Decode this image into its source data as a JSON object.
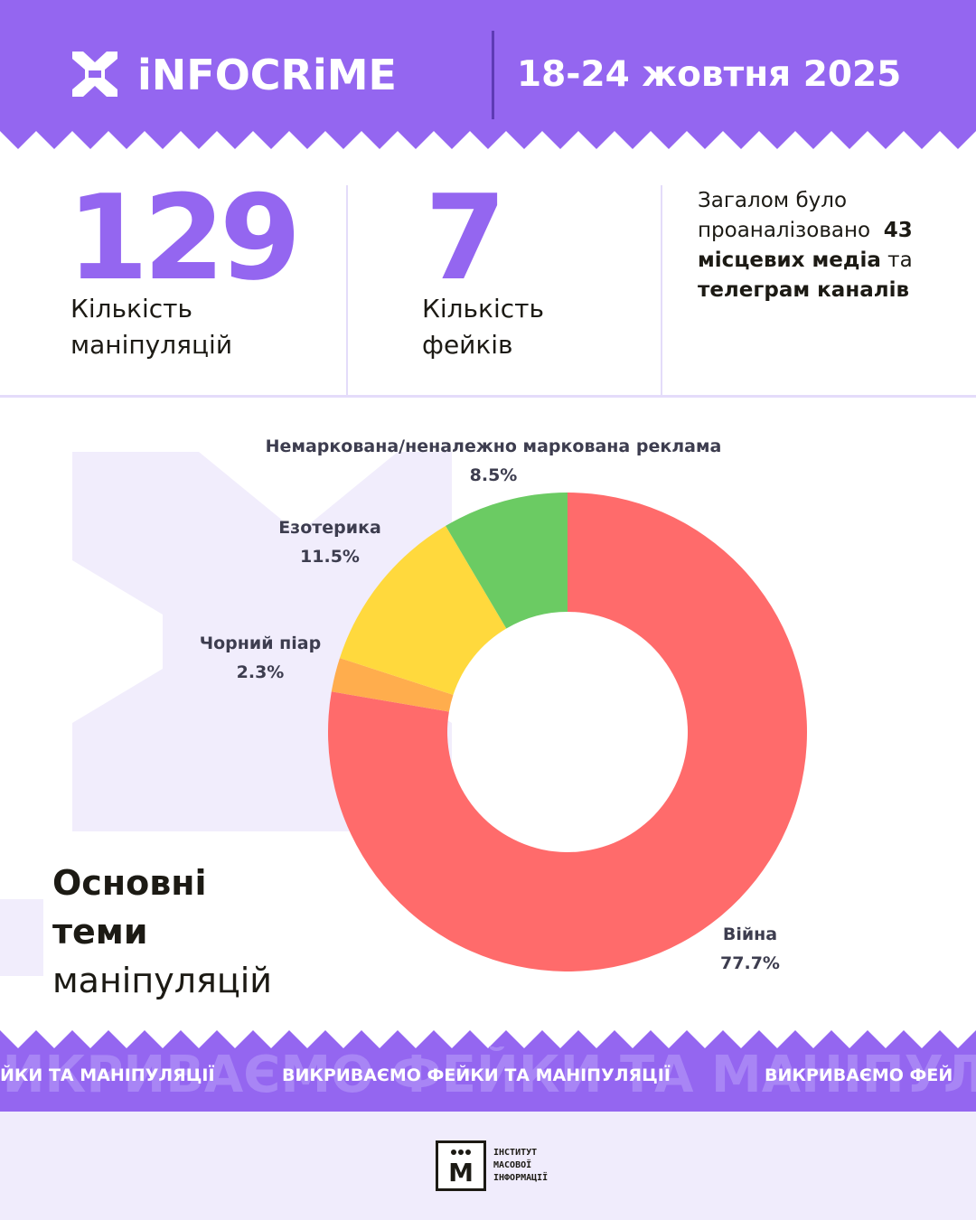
{
  "header": {
    "brand": "iNFOCRiME",
    "date_range": "18-24 жовтня 2025"
  },
  "stats": {
    "manipulations": {
      "value": "129",
      "label_line1": "Кількість",
      "label_line2": "маніпуляцій"
    },
    "fakes": {
      "value": "7",
      "label_line1": "Кількість",
      "label_line2": "фейків"
    },
    "summary": {
      "line1": "Загалом було",
      "line2_prefix": "проаналізовано",
      "count": "43",
      "line3_bold": "місцевих медіа",
      "line3_suffix": "та",
      "line4_bold": "телеграм каналів"
    }
  },
  "chart_data": {
    "type": "pie",
    "donut": true,
    "title": "",
    "slices": [
      {
        "label": "Війна",
        "value": 77.7,
        "display": "77.7%",
        "color": "#ff6b6b"
      },
      {
        "label": "Чорний піар",
        "value": 2.3,
        "display": "2.3%",
        "color": "#ffad4d"
      },
      {
        "label": "Езотерика",
        "value": 11.5,
        "display": "11.5%",
        "color": "#ffd93d"
      },
      {
        "label": "Немаркована/неналежно маркована реклама",
        "value": 8.5,
        "display": "8.5%",
        "color": "#6bcb63"
      }
    ]
  },
  "topics_title": {
    "line1": "Основні",
    "line2": "теми",
    "line3": "маніпуляцій"
  },
  "ticker": {
    "big_text": "ВИКРИВАЄМО ФЕЙКИ ТА МАНІПУЛЯЦІЇ",
    "small_text_1": "ЙКИ ТА МАНІПУЛЯЦІЇ",
    "small_text_2": "ВИКРИВАЄМО ФЕЙКИ ТА МАНІПУЛЯЦІЇ",
    "small_text_3": "ВИКРИВАЄМО ФЕЙ"
  },
  "footer": {
    "logo_letter": "M",
    "line1": "ІНСТИТУТ",
    "line2": "МАСОВОЇ",
    "line3": "ІНФОРМАЦІЇ"
  },
  "colors": {
    "accent": "#9466f0",
    "text": "#1c1a14"
  }
}
